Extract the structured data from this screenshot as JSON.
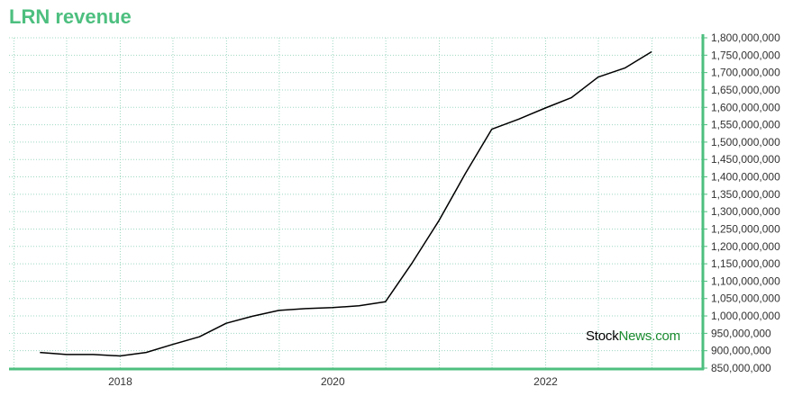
{
  "chart_data": {
    "type": "line",
    "title": "LRN revenue",
    "xlabel": "",
    "ylabel": "",
    "ylim": [
      850000000,
      1800000000
    ],
    "yticks": [
      850000000,
      900000000,
      950000000,
      1000000000,
      1050000000,
      1100000000,
      1150000000,
      1200000000,
      1250000000,
      1300000000,
      1350000000,
      1400000000,
      1450000000,
      1500000000,
      1550000000,
      1600000000,
      1650000000,
      1700000000,
      1750000000,
      1800000000
    ],
    "ytick_labels": [
      "850,000,000",
      "900,000,000",
      "950,000,000",
      "1,000,000,000",
      "1,050,000,000",
      "1,100,000,000",
      "1,150,000,000",
      "1,200,000,000",
      "1,250,000,000",
      "1,300,000,000",
      "1,350,000,000",
      "1,400,000,000",
      "1,450,000,000",
      "1,500,000,000",
      "1,550,000,000",
      "1,600,000,000",
      "1,650,000,000",
      "1,700,000,000",
      "1,750,000,000",
      "1,800,000,000"
    ],
    "xlim": [
      "2016-12-15",
      "2023-06-25"
    ],
    "xticks": [
      {
        "label": "2018",
        "date": "2018-01-01"
      },
      {
        "label": "2020",
        "date": "2020-01-01"
      },
      {
        "label": "2022",
        "date": "2022-01-01"
      }
    ],
    "x_minor_grid": [
      "2017-01-01",
      "2017-07-01",
      "2018-07-01",
      "2019-01-01",
      "2019-07-01",
      "2020-07-01",
      "2021-01-01",
      "2021-07-01",
      "2022-07-01",
      "2023-01-01"
    ],
    "grid": true,
    "colors": {
      "line": "#000000",
      "axis": "#4dbf7f",
      "grid": "#9ed8c0",
      "title": "#4dbf7f"
    },
    "series": [
      {
        "points": [
          [
            "2017-03-31",
            895000000
          ],
          [
            "2017-06-30",
            889000000
          ],
          [
            "2017-09-30",
            889000000
          ],
          [
            "2017-12-31",
            885000000
          ],
          [
            "2018-03-31",
            895000000
          ],
          [
            "2018-06-30",
            918000000
          ],
          [
            "2018-09-30",
            940000000
          ],
          [
            "2018-12-31",
            979000000
          ],
          [
            "2019-03-31",
            999000000
          ],
          [
            "2019-06-30",
            1016000000
          ],
          [
            "2019-09-30",
            1021000000
          ],
          [
            "2019-12-31",
            1024000000
          ],
          [
            "2020-03-31",
            1029000000
          ],
          [
            "2020-06-30",
            1041000000
          ],
          [
            "2020-09-30",
            1153000000
          ],
          [
            "2020-12-31",
            1275000000
          ],
          [
            "2021-03-31",
            1409000000
          ],
          [
            "2021-06-30",
            1537000000
          ],
          [
            "2021-09-30",
            1566000000
          ],
          [
            "2021-12-31",
            1598000000
          ],
          [
            "2022-03-31",
            1628000000
          ],
          [
            "2022-06-30",
            1687000000
          ],
          [
            "2022-09-30",
            1713000000
          ],
          [
            "2022-12-31",
            1760000000
          ]
        ]
      }
    ]
  },
  "watermark": {
    "part1": "Stock",
    "part2": "News.com"
  }
}
